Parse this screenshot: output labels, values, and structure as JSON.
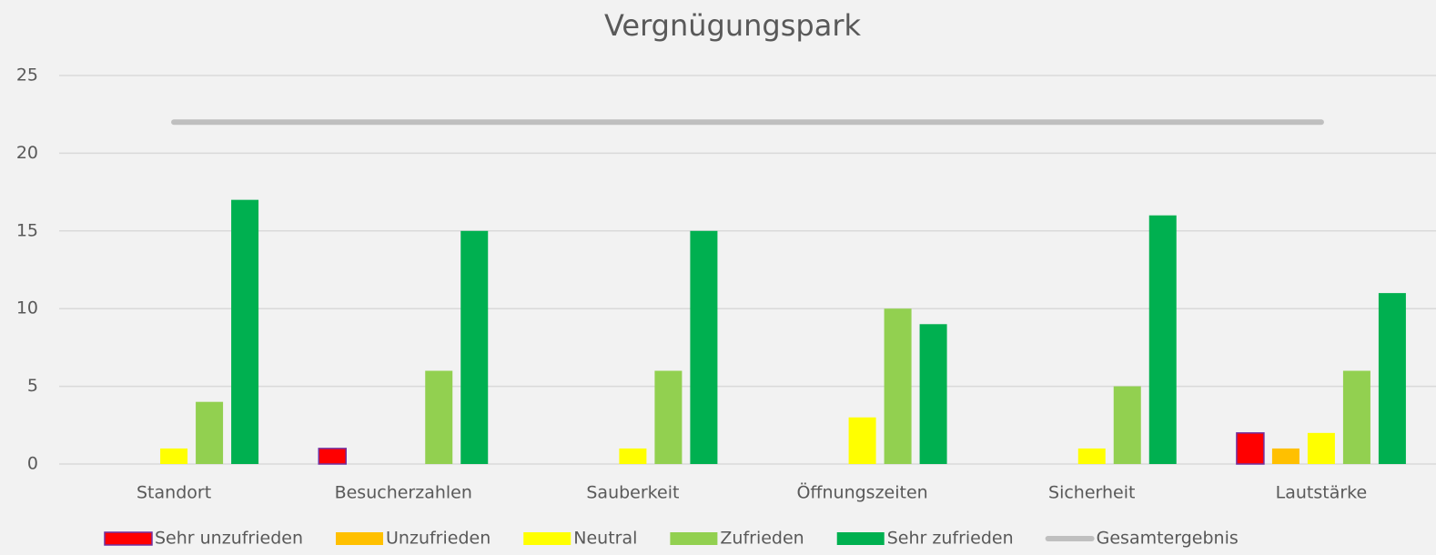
{
  "chart_data": {
    "type": "bar",
    "title": "Vergnügungspark",
    "categories": [
      "Standort",
      "Besucherzahlen",
      "Sauberkeit",
      "Öffnungszeiten",
      "Sicherheit",
      "Lautstärke"
    ],
    "series": [
      {
        "name": "Sehr unzufrieden",
        "color": "#ff0000",
        "edgecolor": "#7030a0",
        "values": [
          0,
          1,
          0,
          0,
          0,
          2
        ]
      },
      {
        "name": "Unzufrieden",
        "color": "#ffc000",
        "values": [
          0,
          0,
          0,
          0,
          0,
          1
        ]
      },
      {
        "name": "Neutral",
        "color": "#ffff00",
        "values": [
          1,
          0,
          1,
          3,
          1,
          2
        ]
      },
      {
        "name": "Zufrieden",
        "color": "#92d050",
        "values": [
          4,
          6,
          6,
          10,
          5,
          6
        ]
      },
      {
        "name": "Sehr zufrieden",
        "color": "#00b050",
        "values": [
          17,
          15,
          15,
          9,
          16,
          11
        ]
      },
      {
        "name": "Gesamtergebnis",
        "type": "line",
        "color": "#bfbfbf",
        "values": [
          22,
          22,
          22,
          22,
          22,
          22
        ]
      }
    ],
    "ylim": [
      0,
      25
    ],
    "yticks": [
      0,
      5,
      10,
      15,
      20,
      25
    ],
    "grid": true,
    "legend": "bottom"
  }
}
